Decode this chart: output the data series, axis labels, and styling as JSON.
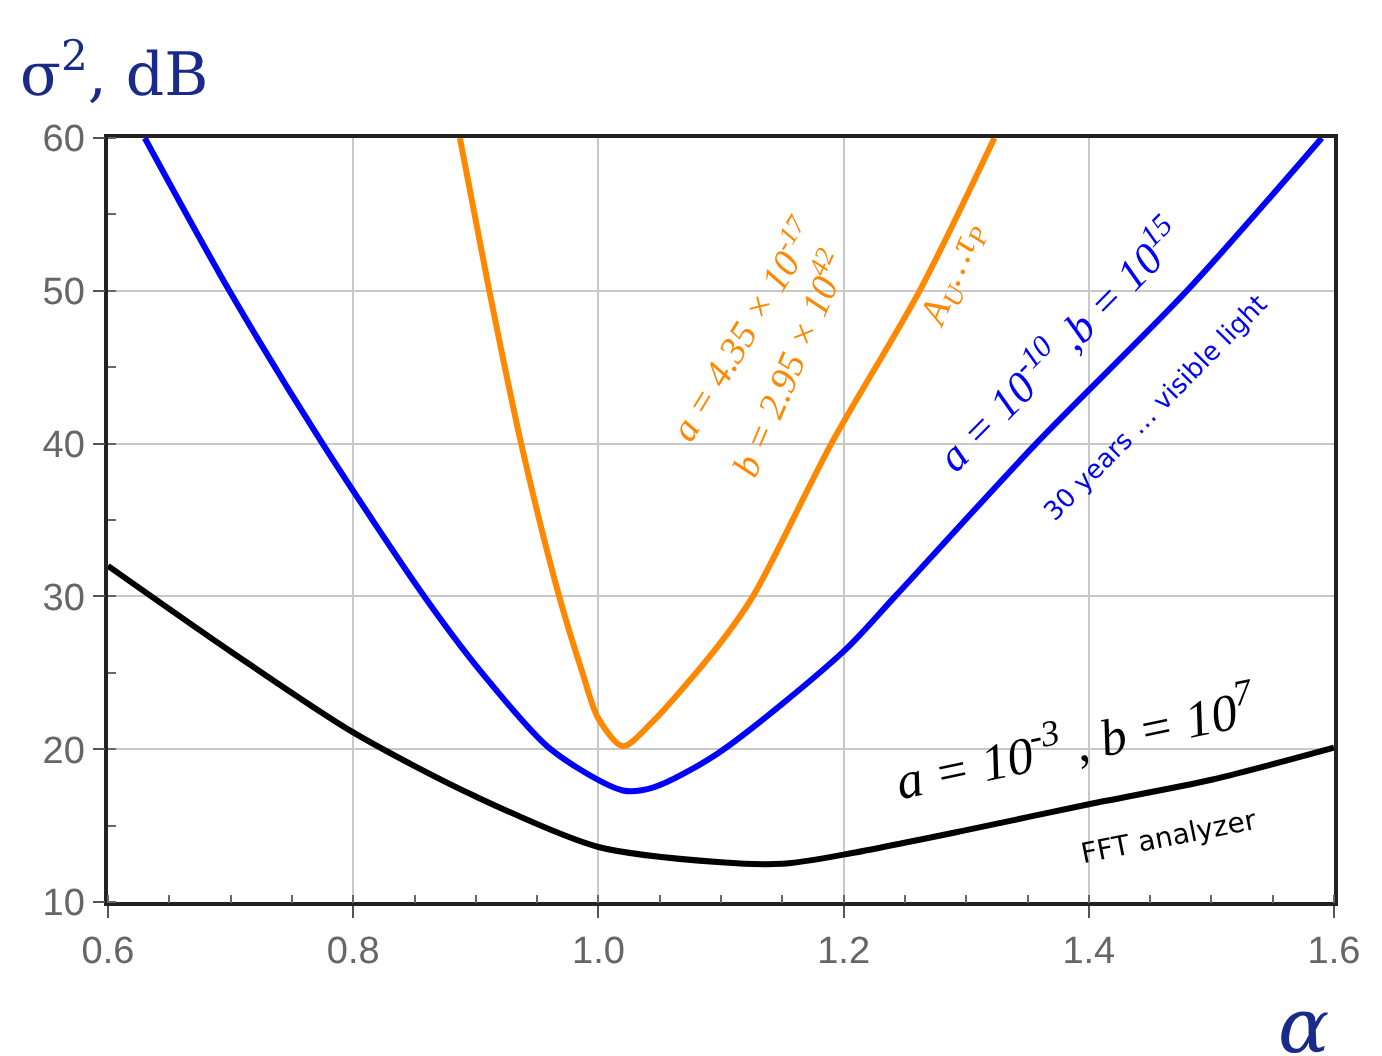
{
  "chart_data": {
    "type": "line",
    "xlabel": "α",
    "ylabel": "σ$^{2}$, dB",
    "xlim": [
      0.6,
      1.6
    ],
    "xticks": [
      0.6,
      0.8,
      {
        "value": 1,
        "label": "1.0"
      },
      1.2,
      1.4,
      1.6
    ],
    "ylim": [
      10,
      60
    ],
    "yticks": [
      10,
      20,
      30,
      40,
      50,
      60
    ],
    "grid": true,
    "marker": "none",
    "line_style": "solid",
    "series": [
      {
        "color": "#000000",
        "x": [
          0.6,
          0.7,
          0.8,
          0.9,
          1.0,
          1.1,
          1.15,
          1.2,
          1.3,
          1.4,
          1.5,
          1.6
        ],
        "values": [
          32,
          26.4,
          21.1,
          16.9,
          13.6,
          12.6,
          12.5,
          13.1,
          14.7,
          16.4,
          18,
          20.1
        ]
      },
      {
        "color": "#0000ff",
        "x": [
          0.63,
          0.699,
          0.775,
          0.858,
          0.905,
          0.961,
          1.02,
          1.045,
          1.097,
          1.2,
          1.242,
          1.357,
          1.48,
          1.59
        ],
        "values": [
          60,
          50,
          40,
          30,
          25,
          20,
          17.3,
          17.5,
          19.7,
          26.4,
          30,
          40,
          50,
          60
        ]
      },
      {
        "color": "#ff8800",
        "x": [
          0.887,
          0.911,
          0.937,
          0.968,
          0.987,
          1.0,
          1.02,
          1.043,
          1.097,
          1.126,
          1.19,
          1.262,
          1.323
        ],
        "values": [
          60,
          50,
          40,
          30,
          25,
          22,
          20.2,
          21.7,
          26.7,
          30,
          40,
          50,
          60
        ]
      }
    ],
    "annotations": [
      "a = 4.35 × 10$^{-17}$",
      "b = 2.95 × 10$^{42}$",
      "A$_{U}$…τ$_{P}$",
      "a = 10$^{-10}$ ,b = 10$^{15}$",
      "30 years … visible light",
      "a = 10$^{-3}$ , b = 10$^{7}$",
      "FFT analyzer"
    ]
  }
}
